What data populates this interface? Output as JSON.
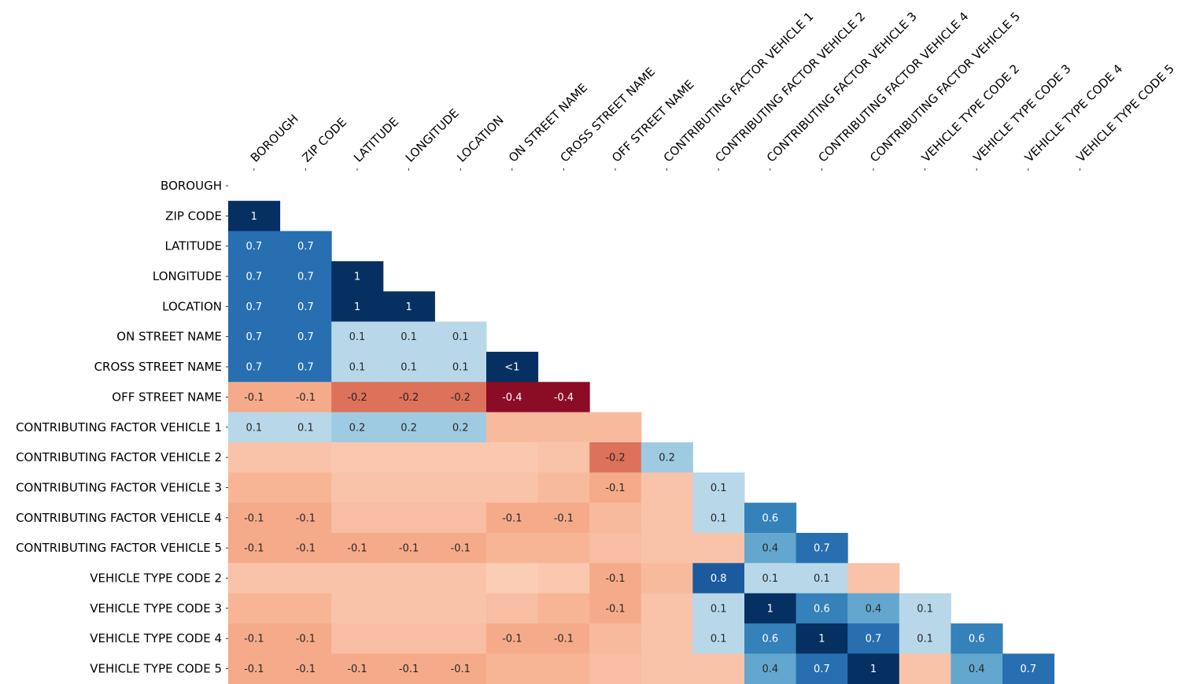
{
  "chart_data": {
    "type": "heatmap",
    "title": "",
    "variables": [
      "BOROUGH",
      "ZIP CODE",
      "LATITUDE",
      "LONGITUDE",
      "LOCATION",
      "ON STREET NAME",
      "CROSS STREET NAME",
      "OFF STREET NAME",
      "CONTRIBUTING FACTOR VEHICLE 1",
      "CONTRIBUTING FACTOR VEHICLE 2",
      "CONTRIBUTING FACTOR VEHICLE 3",
      "CONTRIBUTING FACTOR VEHICLE 4",
      "CONTRIBUTING FACTOR VEHICLE 5",
      "VEHICLE TYPE CODE 2",
      "VEHICLE TYPE CODE 3",
      "VEHICLE TYPE CODE 4",
      "VEHICLE TYPE CODE 5"
    ],
    "value_range": [
      -1,
      1
    ],
    "colormap": "RdBu",
    "mask": "upper triangle and diagonal",
    "cells": [
      [
        1,
        0,
        1,
        "1"
      ],
      [
        2,
        0,
        0.7,
        "0.7"
      ],
      [
        2,
        1,
        0.7,
        "0.7"
      ],
      [
        3,
        0,
        0.7,
        "0.7"
      ],
      [
        3,
        1,
        0.7,
        "0.7"
      ],
      [
        3,
        2,
        1,
        "1"
      ],
      [
        4,
        0,
        0.7,
        "0.7"
      ],
      [
        4,
        1,
        0.7,
        "0.7"
      ],
      [
        4,
        2,
        1,
        "1"
      ],
      [
        4,
        3,
        1,
        "1"
      ],
      [
        5,
        0,
        0.7,
        "0.7"
      ],
      [
        5,
        1,
        0.7,
        "0.7"
      ],
      [
        5,
        2,
        0.1,
        "0.1"
      ],
      [
        5,
        3,
        0.1,
        "0.1"
      ],
      [
        5,
        4,
        0.1,
        "0.1"
      ],
      [
        6,
        0,
        0.7,
        "0.7"
      ],
      [
        6,
        1,
        0.7,
        "0.7"
      ],
      [
        6,
        2,
        0.1,
        "0.1"
      ],
      [
        6,
        3,
        0.1,
        "0.1"
      ],
      [
        6,
        4,
        0.1,
        "0.1"
      ],
      [
        6,
        5,
        1,
        "<1"
      ],
      [
        7,
        0,
        -0.1,
        "-0.1"
      ],
      [
        7,
        1,
        -0.1,
        "-0.1"
      ],
      [
        7,
        2,
        -0.2,
        "-0.2"
      ],
      [
        7,
        3,
        -0.2,
        "-0.2"
      ],
      [
        7,
        4,
        -0.2,
        "-0.2"
      ],
      [
        7,
        5,
        -0.4,
        "-0.4"
      ],
      [
        7,
        6,
        -0.4,
        "-0.4"
      ],
      [
        8,
        0,
        0.1,
        "0.1"
      ],
      [
        8,
        1,
        0.1,
        "0.1"
      ],
      [
        8,
        2,
        0.2,
        "0.2"
      ],
      [
        8,
        3,
        0.2,
        "0.2"
      ],
      [
        8,
        4,
        0.2,
        "0.2"
      ],
      [
        8,
        5,
        -0.07,
        ""
      ],
      [
        8,
        6,
        -0.07,
        ""
      ],
      [
        8,
        7,
        -0.07,
        ""
      ],
      [
        9,
        0,
        -0.05,
        ""
      ],
      [
        9,
        1,
        -0.05,
        ""
      ],
      [
        9,
        2,
        -0.04,
        ""
      ],
      [
        9,
        3,
        -0.04,
        ""
      ],
      [
        9,
        4,
        -0.04,
        ""
      ],
      [
        9,
        5,
        -0.04,
        ""
      ],
      [
        9,
        6,
        -0.05,
        ""
      ],
      [
        9,
        7,
        -0.2,
        "-0.2"
      ],
      [
        9,
        8,
        0.2,
        "0.2"
      ],
      [
        10,
        0,
        -0.08,
        ""
      ],
      [
        10,
        1,
        -0.08,
        ""
      ],
      [
        10,
        2,
        -0.05,
        ""
      ],
      [
        10,
        3,
        -0.05,
        ""
      ],
      [
        10,
        4,
        -0.05,
        ""
      ],
      [
        10,
        5,
        -0.05,
        ""
      ],
      [
        10,
        6,
        -0.07,
        ""
      ],
      [
        10,
        7,
        -0.1,
        "-0.1"
      ],
      [
        10,
        8,
        -0.05,
        ""
      ],
      [
        10,
        9,
        0.1,
        "0.1"
      ],
      [
        11,
        0,
        -0.1,
        "-0.1"
      ],
      [
        11,
        1,
        -0.1,
        "-0.1"
      ],
      [
        11,
        2,
        -0.06,
        ""
      ],
      [
        11,
        3,
        -0.06,
        ""
      ],
      [
        11,
        4,
        -0.06,
        ""
      ],
      [
        11,
        5,
        -0.1,
        "-0.1"
      ],
      [
        11,
        6,
        -0.1,
        "-0.1"
      ],
      [
        11,
        7,
        -0.07,
        ""
      ],
      [
        11,
        8,
        -0.05,
        ""
      ],
      [
        11,
        9,
        0.1,
        "0.1"
      ],
      [
        11,
        10,
        0.6,
        "0.6"
      ],
      [
        12,
        0,
        -0.1,
        "-0.1"
      ],
      [
        12,
        1,
        -0.1,
        "-0.1"
      ],
      [
        12,
        2,
        -0.1,
        "-0.1"
      ],
      [
        12,
        3,
        -0.1,
        "-0.1"
      ],
      [
        12,
        4,
        -0.1,
        "-0.1"
      ],
      [
        12,
        5,
        -0.08,
        ""
      ],
      [
        12,
        6,
        -0.08,
        ""
      ],
      [
        12,
        7,
        -0.06,
        ""
      ],
      [
        12,
        8,
        -0.05,
        ""
      ],
      [
        12,
        9,
        -0.05,
        ""
      ],
      [
        12,
        10,
        0.4,
        "0.4"
      ],
      [
        12,
        11,
        0.7,
        "0.7"
      ],
      [
        13,
        0,
        -0.05,
        ""
      ],
      [
        13,
        1,
        -0.05,
        ""
      ],
      [
        13,
        2,
        -0.05,
        ""
      ],
      [
        13,
        3,
        -0.05,
        ""
      ],
      [
        13,
        4,
        -0.05,
        ""
      ],
      [
        13,
        5,
        -0.03,
        ""
      ],
      [
        13,
        6,
        -0.04,
        ""
      ],
      [
        13,
        7,
        -0.1,
        "-0.1"
      ],
      [
        13,
        8,
        -0.07,
        ""
      ],
      [
        13,
        9,
        0.8,
        "0.8"
      ],
      [
        13,
        10,
        0.1,
        "0.1"
      ],
      [
        13,
        11,
        0.1,
        "0.1"
      ],
      [
        13,
        12,
        -0.05,
        ""
      ],
      [
        14,
        0,
        -0.08,
        ""
      ],
      [
        14,
        1,
        -0.08,
        ""
      ],
      [
        14,
        2,
        -0.05,
        ""
      ],
      [
        14,
        3,
        -0.05,
        ""
      ],
      [
        14,
        4,
        -0.05,
        ""
      ],
      [
        14,
        5,
        -0.06,
        ""
      ],
      [
        14,
        6,
        -0.08,
        ""
      ],
      [
        14,
        7,
        -0.1,
        "-0.1"
      ],
      [
        14,
        8,
        -0.05,
        ""
      ],
      [
        14,
        9,
        0.1,
        "0.1"
      ],
      [
        14,
        10,
        1,
        "1"
      ],
      [
        14,
        11,
        0.6,
        "0.6"
      ],
      [
        14,
        12,
        0.4,
        "0.4"
      ],
      [
        14,
        13,
        0.1,
        "0.1"
      ],
      [
        15,
        0,
        -0.1,
        "-0.1"
      ],
      [
        15,
        1,
        -0.1,
        "-0.1"
      ],
      [
        15,
        2,
        -0.06,
        ""
      ],
      [
        15,
        3,
        -0.06,
        ""
      ],
      [
        15,
        4,
        -0.06,
        ""
      ],
      [
        15,
        5,
        -0.1,
        "-0.1"
      ],
      [
        15,
        6,
        -0.1,
        "-0.1"
      ],
      [
        15,
        7,
        -0.07,
        ""
      ],
      [
        15,
        8,
        -0.05,
        ""
      ],
      [
        15,
        9,
        0.1,
        "0.1"
      ],
      [
        15,
        10,
        0.6,
        "0.6"
      ],
      [
        15,
        11,
        1,
        "1"
      ],
      [
        15,
        12,
        0.7,
        "0.7"
      ],
      [
        15,
        13,
        0.1,
        "0.1"
      ],
      [
        15,
        14,
        0.6,
        "0.6"
      ],
      [
        16,
        0,
        -0.1,
        "-0.1"
      ],
      [
        16,
        1,
        -0.1,
        "-0.1"
      ],
      [
        16,
        2,
        -0.1,
        "-0.1"
      ],
      [
        16,
        3,
        -0.1,
        "-0.1"
      ],
      [
        16,
        4,
        -0.1,
        "-0.1"
      ],
      [
        16,
        5,
        -0.08,
        ""
      ],
      [
        16,
        6,
        -0.08,
        ""
      ],
      [
        16,
        7,
        -0.06,
        ""
      ],
      [
        16,
        8,
        -0.05,
        ""
      ],
      [
        16,
        9,
        -0.05,
        ""
      ],
      [
        16,
        10,
        0.4,
        "0.4"
      ],
      [
        16,
        11,
        0.7,
        "0.7"
      ],
      [
        16,
        12,
        1,
        "1"
      ],
      [
        16,
        13,
        -0.05,
        ""
      ],
      [
        16,
        14,
        0.4,
        "0.4"
      ],
      [
        16,
        15,
        0.7,
        "0.7"
      ]
    ]
  }
}
